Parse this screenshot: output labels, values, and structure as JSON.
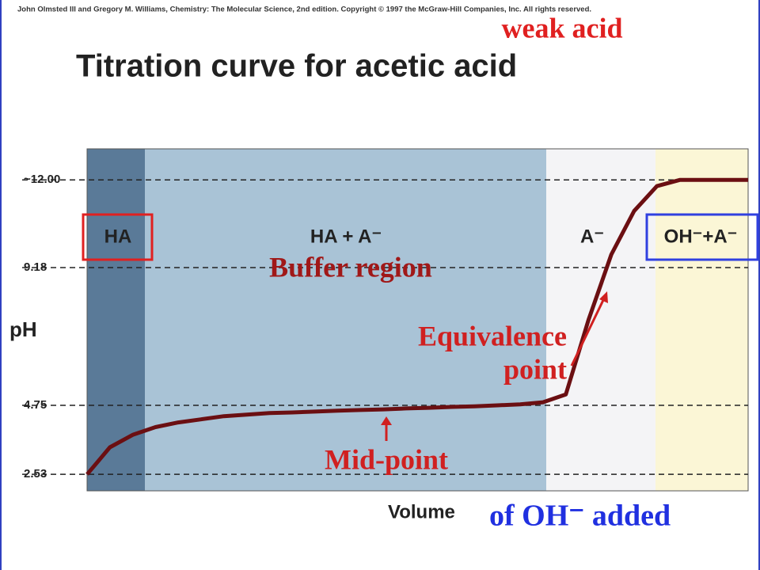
{
  "chart_data": {
    "type": "line",
    "copyright": "John Olmsted III and Gregory M. Williams, Chemistry: The Molecular Science, 2nd edition. Copyright © 1997 the McGraw-Hill Companies, Inc. All rights reserved.",
    "title": "Titration curve for acetic acid",
    "y_label": "pH",
    "x_label": "Volume",
    "x_label_suffix": "of OH⁻ added",
    "regions": [
      "HA",
      "HA + A⁻",
      "A⁻",
      "OH⁻+A⁻"
    ],
    "annotations": {
      "weak_acid": "weak acid",
      "buffer_region": "Buffer region",
      "equivalence_point": [
        "Equivalence",
        "point"
      ],
      "mid_point": "Mid-point"
    },
    "categories": [
      null,
      null,
      null,
      null,
      null,
      null,
      null,
      null,
      null,
      null,
      null,
      null,
      null,
      null,
      null,
      null,
      null,
      null,
      null,
      null,
      null,
      null,
      null,
      null,
      null,
      null,
      null,
      null,
      null,
      null
    ],
    "values": [
      2.53,
      3.4,
      3.8,
      4.05,
      4.2,
      4.3,
      4.4,
      4.45,
      4.5,
      4.52,
      4.55,
      4.58,
      4.6,
      4.62,
      4.65,
      4.67,
      4.7,
      4.72,
      4.75,
      4.78,
      4.85,
      5.1,
      7.5,
      9.6,
      11.0,
      11.8,
      12.0,
      12.0,
      12.0,
      12.0
    ],
    "color": "#6b0f12",
    "ylim": [
      2,
      13
    ],
    "yticks": [
      {
        "value": 12,
        "label": "~12.00"
      },
      9.18,
      4.75,
      2.53
    ],
    "grid": true
  }
}
